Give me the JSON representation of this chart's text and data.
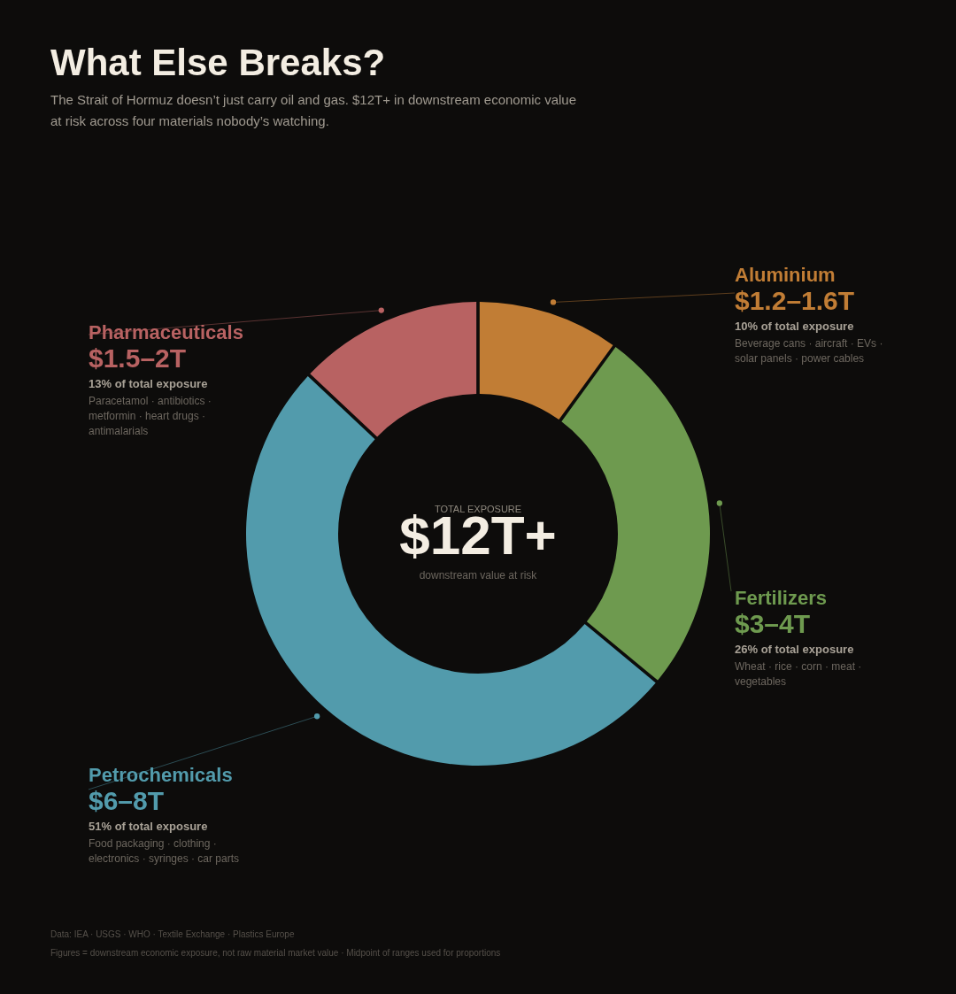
{
  "chart_data": {
    "type": "donut",
    "title": "What Else Breaks?",
    "subtitle": "The Strait of Hormuz doesn’t just carry oil and gas. $12T+ in downstream economic value at risk across four materials nobody’s watching.",
    "categories": [
      "Aluminium",
      "Fertilizers",
      "Petrochemicals",
      "Pharmaceuticals"
    ],
    "values": [
      10,
      26,
      51,
      13
    ],
    "colors": [
      "#c17d35",
      "#6e9a4f",
      "#529bac",
      "#b86262"
    ],
    "annotations": [
      {
        "text": "$1.2–1.6T",
        "x": "Aluminium"
      },
      {
        "text": "$3–4T",
        "x": "Fertilizers"
      },
      {
        "text": "$6–8T",
        "x": "Petrochemicals"
      },
      {
        "text": "$1.5–2T",
        "x": "Pharmaceuticals"
      },
      {
        "text": "10% of total exposure",
        "x": "Aluminium"
      },
      {
        "text": "26% of total exposure",
        "x": "Fertilizers"
      },
      {
        "text": "51% of total exposure",
        "x": "Petrochemicals"
      },
      {
        "text": "13% of total exposure",
        "x": "Pharmaceuticals"
      },
      {
        "text": "Beverage cans · aircraft · EVs · solar panels · power cables",
        "x": "Aluminium"
      },
      {
        "text": "Wheat · rice · corn · meat · vegetables",
        "x": "Fertilizers"
      },
      {
        "text": "Food packaging · clothing · electronics · syringes · car parts",
        "x": "Petrochemicals"
      },
      {
        "text": "Paracetamol · antibiotics · metformin · heart drugs · antimalarials",
        "x": "Pharmaceuticals"
      },
      "TOTAL EXPOSURE",
      "$12T+",
      "downstream value at risk",
      "Data: IEA · USGS · WHO · Textile Exchange · Plastics Europe",
      "Figures = downstream economic exposure, not raw material market value · Midpoint of ranges used for proportions"
    ]
  }
}
